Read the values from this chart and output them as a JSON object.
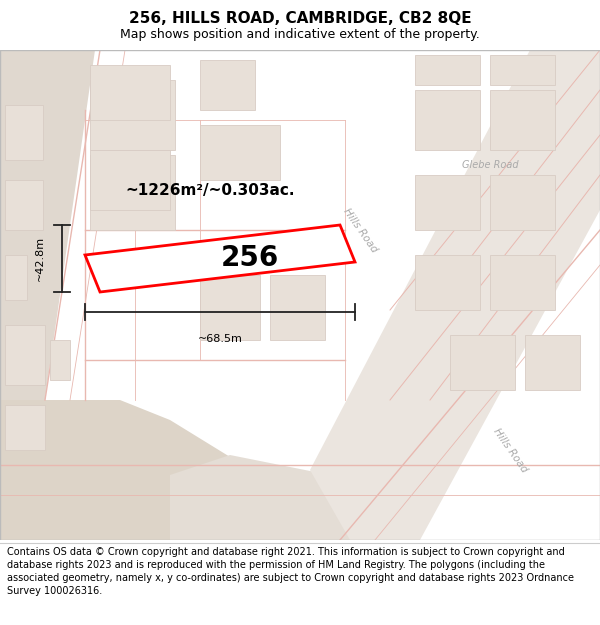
{
  "title": "256, HILLS ROAD, CAMBRIDGE, CB2 8QE",
  "subtitle": "Map shows position and indicative extent of the property.",
  "footer": "Contains OS data © Crown copyright and database right 2021. This information is subject to Crown copyright and database rights 2023 and is reproduced with the permission of HM Land Registry. The polygons (including the associated geometry, namely x, y co-ordinates) are subject to Crown copyright and database rights 2023 Ordnance Survey 100026316.",
  "map_bg": "#f2ece5",
  "block_fill": "#e8e0d8",
  "block_stroke": "#d8ccc4",
  "road_line": "#e8b8b0",
  "tan_area": "#ddd4c8",
  "highlight_fill": "#ffffff",
  "highlight_stroke": "#ff0000",
  "highlight_lw": 2.0,
  "dim_color": "#222222",
  "area_text": "~1226m²/~0.303ac.",
  "plot_number": "256",
  "dim_w": "~68.5m",
  "dim_h": "~42.8m",
  "label_hills1": "Hills Road",
  "label_hills2": "Hills Road",
  "label_glebe": "Glebe Road",
  "road_text_color": "#aaaaaa",
  "title_fontsize": 11,
  "subtitle_fontsize": 9,
  "footer_fontsize": 7,
  "area_fontsize": 11,
  "plot_num_fontsize": 20
}
